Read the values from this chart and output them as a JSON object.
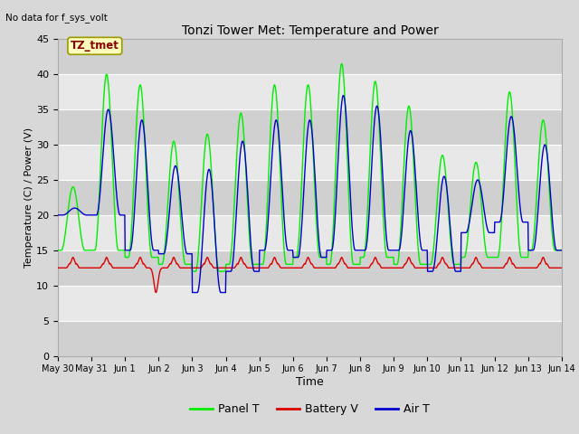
{
  "title": "Tonzi Tower Met: Temperature and Power",
  "top_left_text": "No data for f_sys_volt",
  "box_label": "TZ_tmet",
  "xlabel": "Time",
  "ylabel": "Temperature (C) / Power (V)",
  "ylim": [
    0,
    45
  ],
  "yticks": [
    0,
    5,
    10,
    15,
    20,
    25,
    30,
    35,
    40,
    45
  ],
  "fig_bg_color": "#d8d8d8",
  "plot_bg_color": "#e8e8e8",
  "band_color_dark": "#d0d0d0",
  "band_color_light": "#e8e8e8",
  "grid_color": "#ffffff",
  "panel_t_color": "#00ee00",
  "battery_v_color": "#dd0000",
  "air_t_color": "#0000cc",
  "legend_labels": [
    "Panel T",
    "Battery V",
    "Air T"
  ],
  "x_tick_labels": [
    "May 30",
    "May 31",
    "Jun 1",
    "Jun 2",
    "Jun 3",
    "Jun 4",
    "Jun 5",
    "Jun 6",
    "Jun 7",
    "Jun 8",
    "Jun 9",
    "Jun 10",
    "Jun 11",
    "Jun 12",
    "Jun 13",
    "Jun 14"
  ],
  "n_days": 15,
  "figsize": [
    6.4,
    4.8
  ],
  "dpi": 100
}
